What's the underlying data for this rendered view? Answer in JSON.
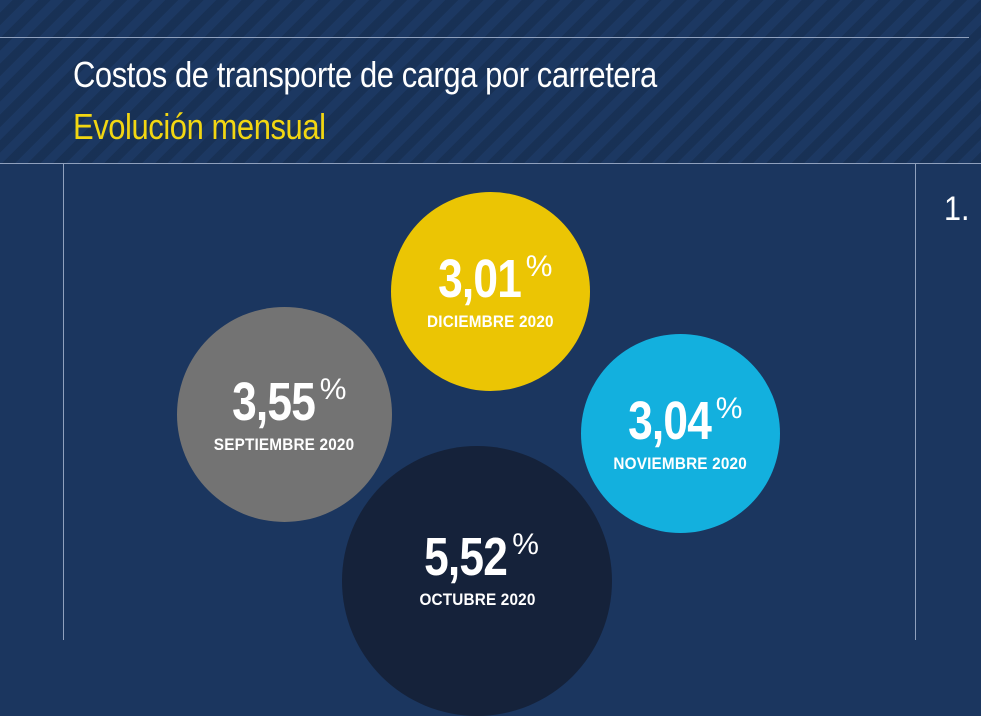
{
  "header": {
    "title": "Costos de transporte de carga por carretera",
    "subtitle": "Evolución mensual"
  },
  "side_number": "1.",
  "colors": {
    "background": "#1b365f",
    "subtitle": "#f2d612",
    "septiembre": "#737373",
    "diciembre": "#ebc504",
    "noviembre": "#13b0de",
    "octubre": "#15223a"
  },
  "bubbles": {
    "septiembre": {
      "value": "3,55",
      "unit": "%",
      "label": "SEPTIEMBRE 2020"
    },
    "diciembre": {
      "value": "3,01",
      "unit": "%",
      "label": "DICIEMBRE 2020"
    },
    "noviembre": {
      "value": "3,04",
      "unit": "%",
      "label": "NOVIEMBRE 2020"
    },
    "octubre": {
      "value": "5,52",
      "unit": "%",
      "label": "OCTUBRE 2020"
    }
  }
}
